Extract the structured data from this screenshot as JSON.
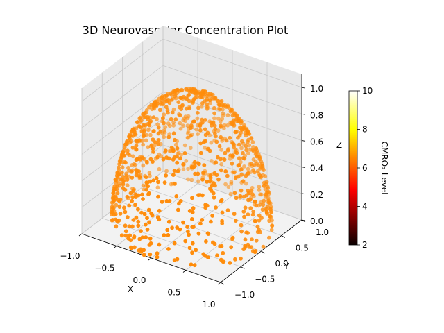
{
  "chart_data": {
    "type": "scatter",
    "projection": "3d",
    "title": "3D Neurovascular Concentration Plot",
    "xlabel": "X",
    "ylabel": "Y",
    "zlabel": "Z",
    "xlim": [
      -1.0,
      1.0
    ],
    "ylim": [
      -1.0,
      1.0
    ],
    "zlim": [
      0.0,
      1.0
    ],
    "xticks": [
      "-1.0",
      "-0.5",
      "0.0",
      "0.5",
      "1.0"
    ],
    "yticks": [
      "-1.0",
      "-0.5",
      "0.0",
      "0.5",
      "1.0"
    ],
    "zticks": [
      "0.0",
      "0.2",
      "0.4",
      "0.6",
      "0.8",
      "1.0"
    ],
    "grid": true,
    "points": {
      "count": 1000,
      "distribution": "random points on the upper unit hemisphere (z >= 0)",
      "color_value": 6.4,
      "color": "#ff8c0a"
    },
    "colorbar": {
      "label": "CMRO₂ Level",
      "colormap": "hot",
      "range": [
        2,
        10
      ],
      "ticks": [
        "2",
        "4",
        "6",
        "8",
        "10"
      ]
    }
  }
}
